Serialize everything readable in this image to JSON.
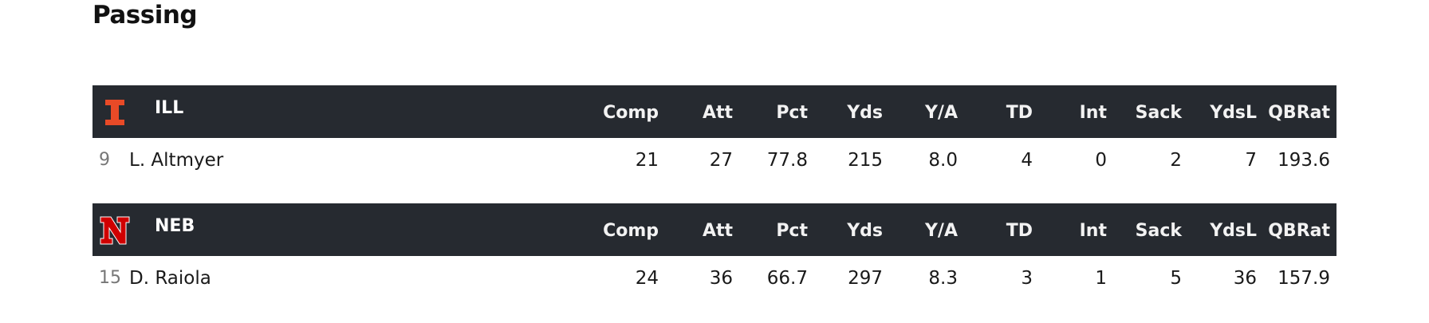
{
  "section": {
    "title": "Passing"
  },
  "columns": [
    "Comp",
    "Att",
    "Pct",
    "Yds",
    "Y/A",
    "TD",
    "Int",
    "Sack",
    "YdsL",
    "QBRat"
  ],
  "teams": [
    {
      "abbr": "ILL",
      "logo_icon": "illinois-block-i-logo",
      "logo_color": "#e84a27",
      "columns": [
        "Comp",
        "Att",
        "Pct",
        "Yds",
        "Y/A",
        "TD",
        "Int",
        "Sack",
        "YdsL",
        "QBRat"
      ],
      "players": [
        {
          "jersey": "9",
          "name": "L. Altmyer",
          "stats": [
            "21",
            "27",
            "77.8",
            "215",
            "8.0",
            "4",
            "0",
            "2",
            "7",
            "193.6"
          ]
        }
      ]
    },
    {
      "abbr": "NEB",
      "logo_icon": "nebraska-n-logo",
      "logo_color": "#d00000",
      "columns": [
        "Comp",
        "Att",
        "Pct",
        "Yds",
        "Y/A",
        "TD",
        "Int",
        "Sack",
        "YdsL",
        "QBRat"
      ],
      "players": [
        {
          "jersey": "15",
          "name": "D. Raiola",
          "stats": [
            "24",
            "36",
            "66.7",
            "297",
            "8.3",
            "3",
            "1",
            "5",
            "36",
            "157.9"
          ]
        }
      ]
    }
  ],
  "colors": {
    "header_bg": "#262a30",
    "header_text": "#ffffff",
    "jersey_text": "#777777"
  }
}
